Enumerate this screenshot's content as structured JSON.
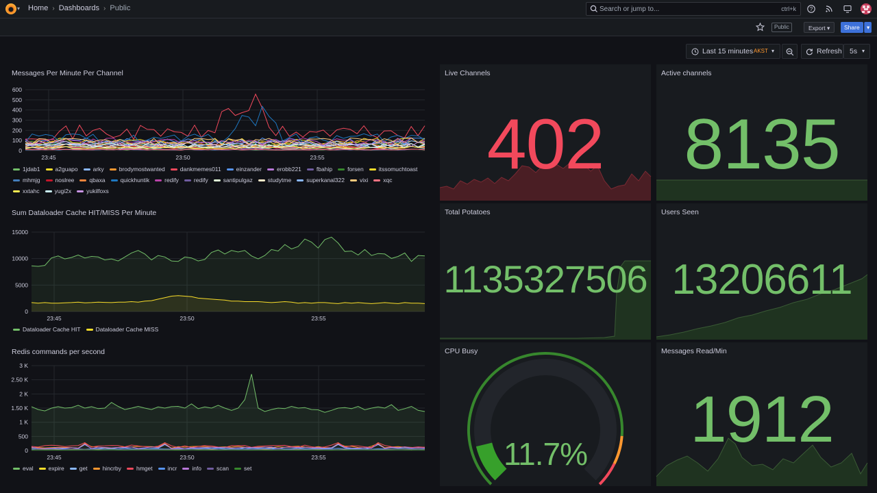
{
  "colors": {
    "green": "#73bf69",
    "red": "#f2495c",
    "yellow": "#fade2a",
    "orange": "#ff9830"
  },
  "breadcrumb": {
    "home": "Home",
    "dashboards": "Dashboards",
    "current": "Public"
  },
  "search": {
    "placeholder": "Search or jump to...",
    "shortcut": "ctrl+k"
  },
  "toolbar": {
    "public_badge": "Public",
    "export_label": "Export",
    "share_label": "Share"
  },
  "timepicker": {
    "range": "Last 15 minutes",
    "tz": "AKST",
    "refresh_label": "Refresh",
    "interval": "5s"
  },
  "panels": {
    "messages": {
      "title": "Messages Per Minute Per Channel"
    },
    "cache": {
      "title": "Sum Dataloader Cache HIT/MISS Per Minute"
    },
    "redis": {
      "title": "Redis commands per second"
    },
    "live": {
      "title": "Live Channels",
      "value": "402"
    },
    "active": {
      "title": "Active channels",
      "value": "8135"
    },
    "potatoes": {
      "title": "Total Potatoes",
      "value": "1135327506"
    },
    "users": {
      "title": "Users Seen",
      "value": "13206611"
    },
    "cpu": {
      "title": "CPU Busy",
      "value": "11.7%",
      "fraction": 0.117
    },
    "read": {
      "title": "Messages Read/Min",
      "value": "1912"
    }
  },
  "chart_data": [
    {
      "type": "line",
      "title": "Messages Per Minute Per Channel",
      "x_ticks": [
        "23:45",
        "23:50",
        "23:55"
      ],
      "y_ticks": [
        "0",
        "100",
        "200",
        "300",
        "400",
        "500",
        "600"
      ],
      "ylim": [
        0,
        600
      ],
      "legend_placement": "bottom",
      "series": [
        {
          "name": "1jdab1",
          "color": "#73bf69"
        },
        {
          "name": "a2guapo",
          "color": "#fade2a"
        },
        {
          "name": "arky",
          "color": "#8ab8ff"
        },
        {
          "name": "brodymostwanted",
          "color": "#ff9830"
        },
        {
          "name": "dankmemes011",
          "color": "#f2495c"
        },
        {
          "name": "einzander",
          "color": "#5794f2"
        },
        {
          "name": "erobb221",
          "color": "#b877d9"
        },
        {
          "name": "fbahip",
          "color": "#705da0"
        },
        {
          "name": "forsen",
          "color": "#37872d"
        },
        {
          "name": "itssomuchtoast",
          "color": "#fade2a"
        },
        {
          "name": "mhmjg",
          "color": "#447ebc"
        },
        {
          "name": "noslree",
          "color": "#c4162a"
        },
        {
          "name": "qbaxa",
          "color": "#ef843c"
        },
        {
          "name": "quickhuntik",
          "color": "#1f78c1"
        },
        {
          "name": "redify",
          "color": "#ba43a9"
        },
        {
          "name": "redify",
          "color": "#705da0"
        },
        {
          "name": "santipulgaz",
          "color": "#e0f9d7"
        },
        {
          "name": "studytme",
          "color": "#fceaca"
        },
        {
          "name": "superkanal322",
          "color": "#8ab8ff"
        },
        {
          "name": "vixi",
          "color": "#ffcb7d"
        },
        {
          "name": "xqc",
          "color": "#ff7383"
        },
        {
          "name": "xxtahc",
          "color": "#ffee52"
        },
        {
          "name": "yugi2x",
          "color": "#caf2f7"
        },
        {
          "name": "yukilfoxs",
          "color": "#ca95e5"
        }
      ]
    },
    {
      "type": "line",
      "title": "Sum Dataloader Cache HIT/MISS Per Minute",
      "x_ticks": [
        "23:45",
        "23:50",
        "23:55"
      ],
      "y_ticks": [
        "0",
        "5000",
        "10000",
        "15000"
      ],
      "ylim": [
        0,
        16000
      ],
      "legend_placement": "bottom",
      "series": [
        {
          "name": "Dataloader Cache HIT",
          "color": "#73bf69",
          "values": [
            9200,
            9100,
            9300,
            10800,
            11200,
            10600,
            10900,
            11400,
            10800,
            11100,
            11000,
            10400,
            10600,
            10200,
            11000,
            11800,
            12300,
            11600,
            10400,
            11300,
            11000,
            10200,
            10100,
            11000,
            10800,
            10200,
            10500,
            11900,
            12400,
            11600,
            12300,
            12000,
            12300,
            11200,
            10600,
            11300,
            12500,
            12200,
            13500,
            12600,
            13100,
            14600,
            14000,
            12800,
            14500,
            15000,
            13800,
            12100,
            12200,
            11400,
            12500,
            11300,
            11700,
            11600,
            10700,
            11100,
            11800,
            10100,
            11300,
            11200
          ]
        },
        {
          "name": "Dataloader Cache MISS",
          "color": "#fade2a",
          "values": [
            1800,
            1700,
            1800,
            1700,
            1700,
            1750,
            1800,
            1900,
            1750,
            1800,
            1900,
            1850,
            1800,
            1900,
            1900,
            2000,
            1900,
            2100,
            2200,
            2500,
            2800,
            3100,
            3200,
            3100,
            3000,
            2700,
            2600,
            2500,
            2400,
            2300,
            2100,
            2100,
            2000,
            2000,
            2000,
            1900,
            1800,
            1900,
            2000,
            1900,
            1700,
            1800,
            1700,
            1800,
            1800,
            1700,
            1600,
            1800,
            1700,
            1800,
            1700,
            1600,
            1700,
            1800,
            1700,
            1600,
            1800,
            1700,
            1700,
            1600
          ]
        }
      ]
    },
    {
      "type": "line",
      "title": "Redis commands per second",
      "x_ticks": [
        "23:45",
        "23:50",
        "23:55"
      ],
      "y_ticks": [
        "0",
        "500",
        "1 K",
        "1.50 K",
        "2 K",
        "2.50 K",
        "3 K"
      ],
      "ylim": [
        0,
        3000
      ],
      "legend_placement": "bottom",
      "series": [
        {
          "name": "eval",
          "color": "#73bf69",
          "values": [
            1550,
            1450,
            1400,
            1500,
            1550,
            1500,
            1520,
            1600,
            1500,
            1550,
            1480,
            1500,
            1700,
            1560,
            1450,
            1500,
            1560,
            1500,
            1450,
            1540,
            1500,
            1550,
            1560,
            1500,
            1650,
            1480,
            1540,
            1500,
            1600,
            1500,
            1420,
            1500,
            1800,
            2700,
            1500,
            1380,
            1450,
            1500,
            1480,
            1560,
            1500,
            1520,
            1450,
            1440,
            1350,
            1420,
            1500,
            1520,
            1480,
            1560,
            1440,
            1500,
            1540,
            1500,
            1620,
            1420,
            1480,
            1560,
            1420,
            1380
          ]
        },
        {
          "name": "expire",
          "color": "#fade2a"
        },
        {
          "name": "get",
          "color": "#8ab8ff"
        },
        {
          "name": "hincrby",
          "color": "#ff9830"
        },
        {
          "name": "hmget",
          "color": "#f2495c"
        },
        {
          "name": "incr",
          "color": "#5794f2"
        },
        {
          "name": "info",
          "color": "#b877d9"
        },
        {
          "name": "scan",
          "color": "#705da0"
        },
        {
          "name": "set",
          "color": "#37872d"
        }
      ]
    }
  ]
}
